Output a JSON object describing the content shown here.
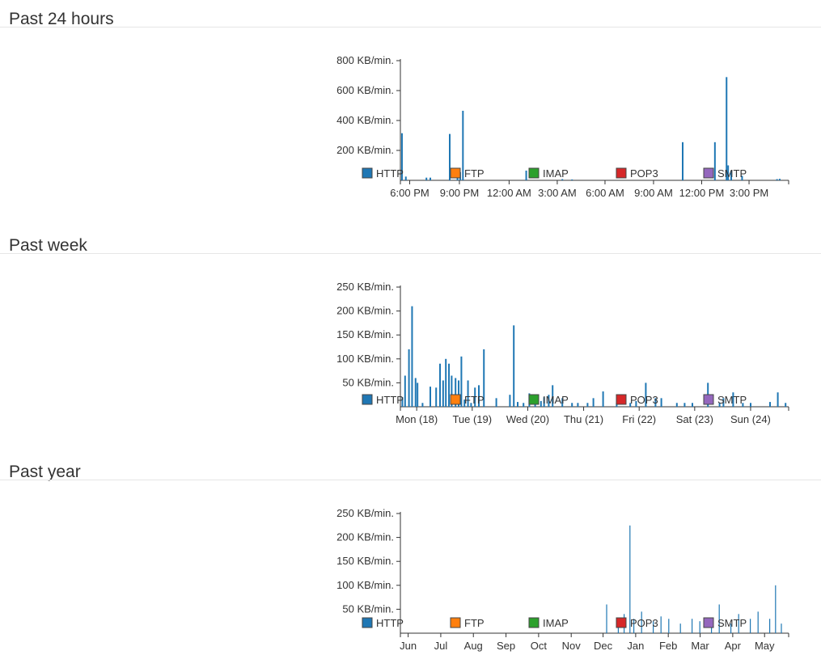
{
  "colors": {
    "http": "#1f77b4",
    "ftp": "#ff7f0e",
    "imap": "#2ca02c",
    "pop3": "#d62728",
    "smtp": "#9467bd"
  },
  "legend": [
    "HTTP",
    "FTP",
    "IMAP",
    "POP3",
    "SMTP"
  ],
  "sections": [
    {
      "title": "Past 24 hours"
    },
    {
      "title": "Past week"
    },
    {
      "title": "Past year"
    }
  ],
  "chart_data": [
    {
      "type": "bar",
      "title": "Past 24 hours",
      "ylim": [
        0,
        800
      ],
      "yticks": [
        200,
        400,
        600,
        800
      ],
      "ytick_labels": [
        "200 KB/min.",
        "400 KB/min.",
        "600 KB/min.",
        "800 KB/min."
      ],
      "xlim": [
        0,
        1
      ],
      "xtick_labels": [
        "6:00 PM",
        "9:00 PM",
        "12:00 AM",
        "3:00 AM",
        "6:00 AM",
        "9:00 AM",
        "12:00 PM",
        "3:00 PM"
      ],
      "xtick_positions": [
        0.024,
        0.152,
        0.28,
        0.404,
        0.527,
        0.652,
        0.776,
        0.898
      ],
      "legend": [
        "HTTP",
        "FTP",
        "IMAP",
        "POP3",
        "SMTP"
      ],
      "series": [
        {
          "name": "HTTP",
          "points": [
            [
              0.002,
              315
            ],
            [
              0.012,
              25
            ],
            [
              0.065,
              18
            ],
            [
              0.075,
              18
            ],
            [
              0.125,
              310
            ],
            [
              0.145,
              40
            ],
            [
              0.152,
              55
            ],
            [
              0.159,
              465
            ],
            [
              0.322,
              65
            ],
            [
              0.415,
              8
            ],
            [
              0.44,
              6
            ],
            [
              0.725,
              255
            ],
            [
              0.808,
              255
            ],
            [
              0.838,
              690
            ],
            [
              0.842,
              100
            ],
            [
              0.85,
              65
            ],
            [
              0.878,
              30
            ],
            [
              0.968,
              8
            ],
            [
              0.975,
              10
            ]
          ]
        },
        {
          "name": "FTP",
          "points": []
        },
        {
          "name": "IMAP",
          "points": []
        },
        {
          "name": "POP3",
          "points": []
        },
        {
          "name": "SMTP",
          "points": []
        }
      ]
    },
    {
      "type": "bar",
      "title": "Past week",
      "ylim": [
        0,
        250
      ],
      "yticks": [
        50,
        100,
        150,
        200,
        250
      ],
      "ytick_labels": [
        "50 KB/min.",
        "100 KB/min.",
        "150 KB/min.",
        "200 KB/min.",
        "250 KB/min."
      ],
      "xlim": [
        0,
        1
      ],
      "xtick_labels": [
        "Mon (18)",
        "Tue (19)",
        "Wed (20)",
        "Thu (21)",
        "Fri (22)",
        "Sat (23)",
        "Sun (24)"
      ],
      "xtick_positions": [
        0.042,
        0.185,
        0.328,
        0.472,
        0.615,
        0.758,
        0.902
      ],
      "legend": [
        "HTTP",
        "FTP",
        "IMAP",
        "POP3",
        "SMTP"
      ],
      "series": [
        {
          "name": "HTTP",
          "points": [
            [
              0.003,
              20
            ],
            [
              0.01,
              65
            ],
            [
              0.02,
              120
            ],
            [
              0.028,
              210
            ],
            [
              0.037,
              60
            ],
            [
              0.042,
              50
            ],
            [
              0.055,
              8
            ],
            [
              0.075,
              42
            ],
            [
              0.09,
              40
            ],
            [
              0.1,
              90
            ],
            [
              0.108,
              55
            ],
            [
              0.115,
              100
            ],
            [
              0.123,
              90
            ],
            [
              0.13,
              65
            ],
            [
              0.14,
              60
            ],
            [
              0.148,
              55
            ],
            [
              0.155,
              105
            ],
            [
              0.163,
              15
            ],
            [
              0.172,
              55
            ],
            [
              0.18,
              8
            ],
            [
              0.19,
              40
            ],
            [
              0.2,
              45
            ],
            [
              0.213,
              120
            ],
            [
              0.245,
              18
            ],
            [
              0.28,
              25
            ],
            [
              0.29,
              170
            ],
            [
              0.3,
              10
            ],
            [
              0.315,
              8
            ],
            [
              0.33,
              28
            ],
            [
              0.345,
              8
            ],
            [
              0.36,
              12
            ],
            [
              0.368,
              20
            ],
            [
              0.38,
              25
            ],
            [
              0.39,
              45
            ],
            [
              0.415,
              18
            ],
            [
              0.44,
              8
            ],
            [
              0.455,
              8
            ],
            [
              0.48,
              8
            ],
            [
              0.495,
              18
            ],
            [
              0.52,
              32
            ],
            [
              0.555,
              8
            ],
            [
              0.59,
              8
            ],
            [
              0.605,
              12
            ],
            [
              0.63,
              50
            ],
            [
              0.655,
              18
            ],
            [
              0.67,
              18
            ],
            [
              0.71,
              8
            ],
            [
              0.75,
              8
            ],
            [
              0.73,
              8
            ],
            [
              0.79,
              50
            ],
            [
              0.82,
              8
            ],
            [
              0.83,
              18
            ],
            [
              0.855,
              30
            ],
            [
              0.88,
              8
            ],
            [
              0.9,
              8
            ],
            [
              0.95,
              10
            ],
            [
              0.97,
              30
            ],
            [
              0.99,
              8
            ]
          ]
        },
        {
          "name": "FTP",
          "points": []
        },
        {
          "name": "IMAP",
          "points": []
        },
        {
          "name": "POP3",
          "points": []
        },
        {
          "name": "SMTP",
          "points": []
        }
      ]
    },
    {
      "type": "bar",
      "title": "Past year",
      "ylim": [
        0,
        250
      ],
      "yticks": [
        50,
        100,
        150,
        200,
        250
      ],
      "ytick_labels": [
        "50 KB/min.",
        "100 KB/min.",
        "150 KB/min.",
        "200 KB/min.",
        "250 KB/min."
      ],
      "xlim": [
        0,
        1
      ],
      "xtick_labels": [
        "Jun",
        "Jul",
        "Aug",
        "Sep",
        "Oct",
        "Nov",
        "Dec",
        "Jan",
        "Feb",
        "Mar",
        "Apr",
        "May"
      ],
      "xtick_positions": [
        0.02,
        0.104,
        0.188,
        0.272,
        0.356,
        0.44,
        0.522,
        0.606,
        0.69,
        0.772,
        0.856,
        0.938
      ],
      "legend": [
        "HTTP",
        "FTP",
        "IMAP",
        "POP3",
        "SMTP"
      ],
      "series": [
        {
          "name": "HTTP",
          "points": [
            [
              0.53,
              60
            ],
            [
              0.56,
              20
            ],
            [
              0.575,
              40
            ],
            [
              0.59,
              225
            ],
            [
              0.6,
              30
            ],
            [
              0.62,
              45
            ],
            [
              0.65,
              25
            ],
            [
              0.67,
              35
            ],
            [
              0.69,
              30
            ],
            [
              0.72,
              20
            ],
            [
              0.75,
              30
            ],
            [
              0.77,
              25
            ],
            [
              0.8,
              30
            ],
            [
              0.82,
              60
            ],
            [
              0.85,
              20
            ],
            [
              0.87,
              40
            ],
            [
              0.9,
              30
            ],
            [
              0.92,
              45
            ],
            [
              0.95,
              30
            ],
            [
              0.965,
              100
            ],
            [
              0.98,
              20
            ]
          ]
        },
        {
          "name": "FTP",
          "points": []
        },
        {
          "name": "IMAP",
          "points": []
        },
        {
          "name": "POP3",
          "points": []
        },
        {
          "name": "SMTP",
          "points": []
        }
      ]
    }
  ]
}
